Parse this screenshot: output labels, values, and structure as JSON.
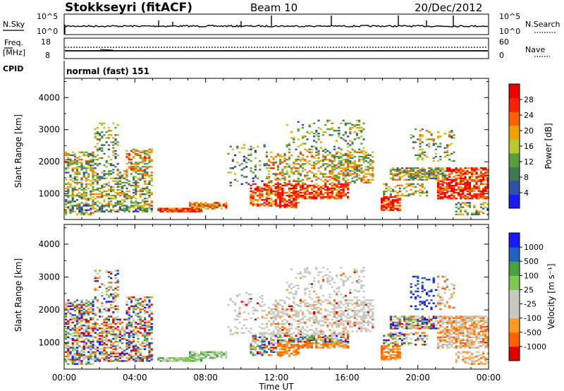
{
  "header": {
    "title": "Stokkseyri (fitACF)",
    "beam": "Beam 10",
    "date": "20/Dec/2012"
  },
  "panels": {
    "nsky": {
      "label": "N.Sky",
      "left_ticks": [
        "10^5",
        "10^0"
      ],
      "right_ticks": [
        "10^5",
        "10^0"
      ],
      "right_label": "N.Search"
    },
    "freq": {
      "label_line1": "Freq.",
      "label_line2": "[MHz]",
      "left_ticks": [
        "18",
        "8"
      ],
      "right_ticks": [
        "60",
        "0"
      ],
      "right_label": "Nave"
    },
    "cpid": {
      "label": "CPID",
      "text": "normal (fast) 151"
    }
  },
  "colors": {
    "power_scale": [
      "#1a1aff",
      "#2f4fa8",
      "#3e7a52",
      "#55a03a",
      "#b8c830",
      "#f0a000",
      "#ff6000",
      "#ff2000",
      "#ee0000"
    ],
    "velocity_scale": [
      "#e00000",
      "#ff6000",
      "#ff9a20",
      "#c8c8c0",
      "#c8c8c0",
      "#7cc850",
      "#48a040",
      "#2060c0",
      "#1a1aff"
    ],
    "gray": "#c8c8c0"
  },
  "chart_data": [
    {
      "type": "heatmap",
      "title": "",
      "xlabel": "",
      "ylabel": "Slant Range [km]",
      "x_ticks": [
        "00:00",
        "04:00",
        "08:00",
        "12:00",
        "16:00",
        "20:00",
        "00:00"
      ],
      "y_ticks": [
        "1000",
        "2000",
        "3000",
        "4000"
      ],
      "ylim": [
        200,
        4600
      ],
      "colorbar": {
        "label": "Power [dB]",
        "ticks": [
          "4",
          "8",
          "12",
          "16",
          "20",
          "24",
          "28"
        ]
      },
      "grid": false
    },
    {
      "type": "heatmap",
      "title": "",
      "xlabel": "Time UT",
      "ylabel": "Slant Range [km]",
      "x_ticks": [
        "00:00",
        "04:00",
        "08:00",
        "12:00",
        "16:00",
        "20:00",
        "00:00"
      ],
      "y_ticks": [
        "1000",
        "2000",
        "3000",
        "4000"
      ],
      "ylim": [
        200,
        4600
      ],
      "colorbar": {
        "label": "Velocity [m s⁻¹]",
        "ticks": [
          "1000",
          "500",
          "100",
          "25",
          "-25",
          "-100",
          "-500",
          "-1000"
        ]
      },
      "grid": false
    }
  ]
}
